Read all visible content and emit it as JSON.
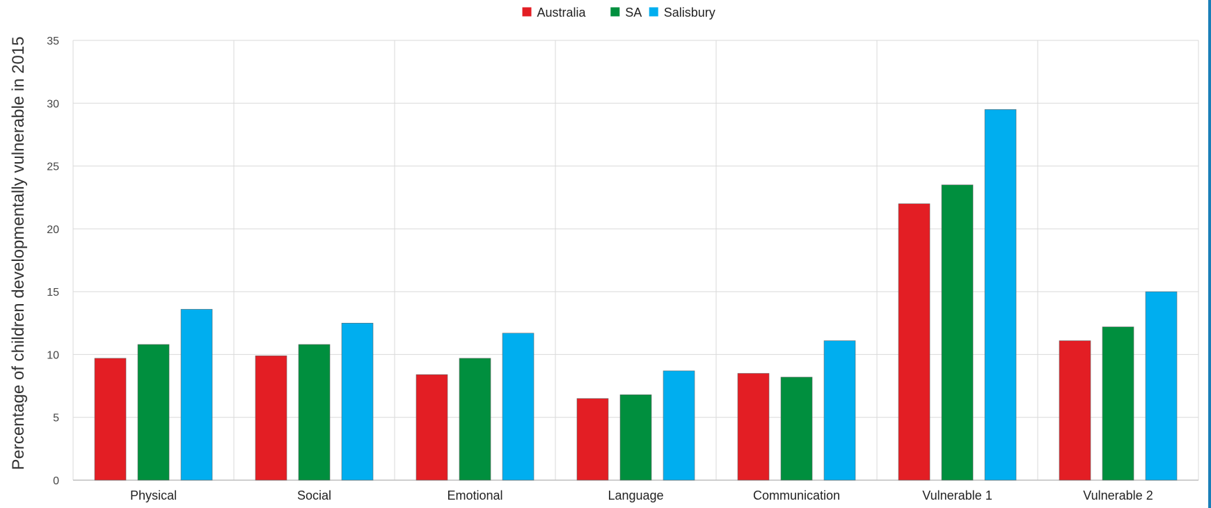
{
  "colors": {
    "grid": "#d9d9d9",
    "axis": "#bfbfbf",
    "right_edge": "#1a7fb8",
    "series_stroke": "#6b6b6b"
  },
  "chart_data": {
    "type": "bar",
    "ylabel": "Percentage of children developmentally vulnerable in 2015",
    "xlabel": "",
    "ylim": [
      0,
      35
    ],
    "yticks": [
      0,
      5,
      10,
      15,
      20,
      25,
      30,
      35
    ],
    "grid": true,
    "legend_position": "top-center",
    "categories": [
      "Physical",
      "Social",
      "Emotional",
      "Language",
      "Communication",
      "Vulnerable 1",
      "Vulnerable 2"
    ],
    "series": [
      {
        "name": "Australia",
        "color": "#e31e24",
        "values": [
          9.7,
          9.9,
          8.4,
          6.5,
          8.5,
          22.0,
          11.1
        ]
      },
      {
        "name": "SA",
        "color": "#008f3e",
        "values": [
          10.8,
          10.8,
          9.7,
          6.8,
          8.2,
          23.5,
          12.2
        ]
      },
      {
        "name": "Salisbury",
        "color": "#00aeef",
        "values": [
          13.6,
          12.5,
          11.7,
          8.7,
          11.1,
          29.5,
          15.0
        ]
      }
    ]
  }
}
